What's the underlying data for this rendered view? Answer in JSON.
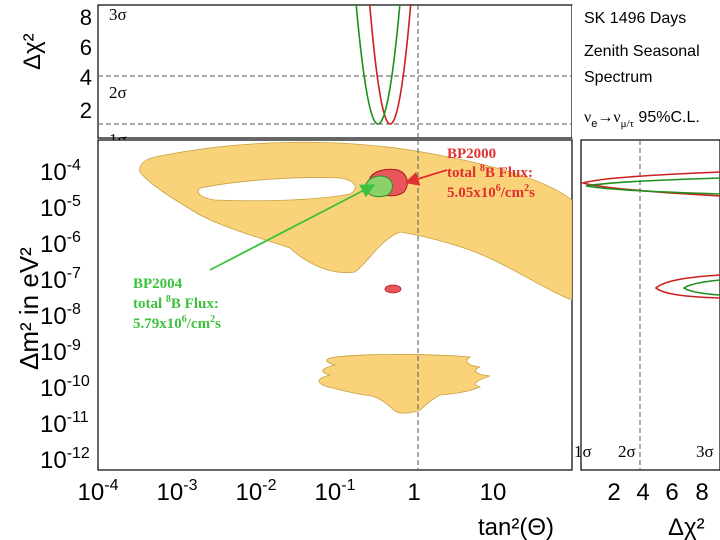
{
  "chart_data": {
    "type": "contour",
    "title": "SK 1496 Days",
    "legend": {
      "line1": "SK 1496 Days",
      "line2": "Zenith Seasonal",
      "line3": "Spectrum",
      "line4_prefix": "ν",
      "line4_sub1": "e",
      "line4_arrow": "→ν",
      "line4_sub2": "μ/τ",
      "line4_suffix": " 95%C.L."
    },
    "main_panel": {
      "xlabel": "tan²(Θ)",
      "ylabel": "Δm² in eV²",
      "x_scale": "log",
      "y_scale": "log",
      "x_range": [
        0.0001,
        100
      ],
      "y_range": [
        1e-12,
        0.001
      ],
      "x_ticks": [
        {
          "base": "10",
          "exp": "-4"
        },
        {
          "base": "10",
          "exp": "-3"
        },
        {
          "base": "10",
          "exp": "-2"
        },
        {
          "base": "10",
          "exp": "-1"
        },
        {
          "base": "1",
          "exp": ""
        },
        {
          "base": "10",
          "exp": ""
        }
      ],
      "y_ticks": [
        {
          "base": "10",
          "exp": "-4"
        },
        {
          "base": "10",
          "exp": "-5"
        },
        {
          "base": "10",
          "exp": "-6"
        },
        {
          "base": "10",
          "exp": "-7"
        },
        {
          "base": "10",
          "exp": "-8"
        },
        {
          "base": "10",
          "exp": "-9"
        },
        {
          "base": "10",
          "exp": "-10"
        },
        {
          "base": "10",
          "exp": "-11"
        },
        {
          "base": "10",
          "exp": "-12"
        }
      ],
      "reference_line_x": 1,
      "regions": [
        {
          "name": "SK excluded region",
          "color": "#f9d27a"
        },
        {
          "name": "BP2000 allowed (LMA)",
          "color": "#e8555a"
        },
        {
          "name": "BP2004 allowed (LMA)",
          "color": "#8bd16a"
        },
        {
          "name": "BP2000 allowed (LOW)",
          "color": "#e8555a"
        }
      ]
    },
    "top_panel": {
      "ylabel": "Δχ²",
      "y_range": [
        0,
        9
      ],
      "y_ticks": [
        "2",
        "4",
        "6",
        "8"
      ],
      "sigma_lines": [
        {
          "label": "1σ",
          "value": 1
        },
        {
          "label": "2σ",
          "value": 4
        },
        {
          "label": "3σ",
          "value": 9
        }
      ],
      "series": [
        {
          "name": "BP2000",
          "color": "#cc1f1f",
          "minimum_x": 0.5
        },
        {
          "name": "BP2004",
          "color": "#1f8f1f",
          "minimum_x": 0.35
        }
      ]
    },
    "side_panel": {
      "xlabel": "Δχ²",
      "x_range": [
        0,
        9
      ],
      "x_ticks": [
        "2",
        "4",
        "6",
        "8"
      ],
      "sigma_labels": [
        "1σ",
        "2σ",
        "3σ"
      ],
      "sigma_line_x": 4,
      "series": [
        {
          "name": "BP2000",
          "color": "#cc1f1f"
        },
        {
          "name": "BP2004",
          "color": "#1f8f1f"
        }
      ]
    },
    "annotations": [
      {
        "model": "BP2000",
        "line1": "BP2000",
        "line2_a": "total ",
        "line2_sup": "8",
        "line2_b": "B Flux:",
        "line3_a": "5.05x10",
        "line3_sup": "6",
        "line3_b": "/cm",
        "line3_sup2": "2",
        "line3_c": "s",
        "color": "#e03030"
      },
      {
        "model": "BP2004",
        "line1": "BP2004",
        "line2_a": "total ",
        "line2_sup": "8",
        "line2_b": "B Flux:",
        "line3_a": "5.79x10",
        "line3_sup": "6",
        "line3_b": "/cm",
        "line3_sup2": "2",
        "line3_c": "s",
        "color": "#3cc23c"
      }
    ]
  }
}
